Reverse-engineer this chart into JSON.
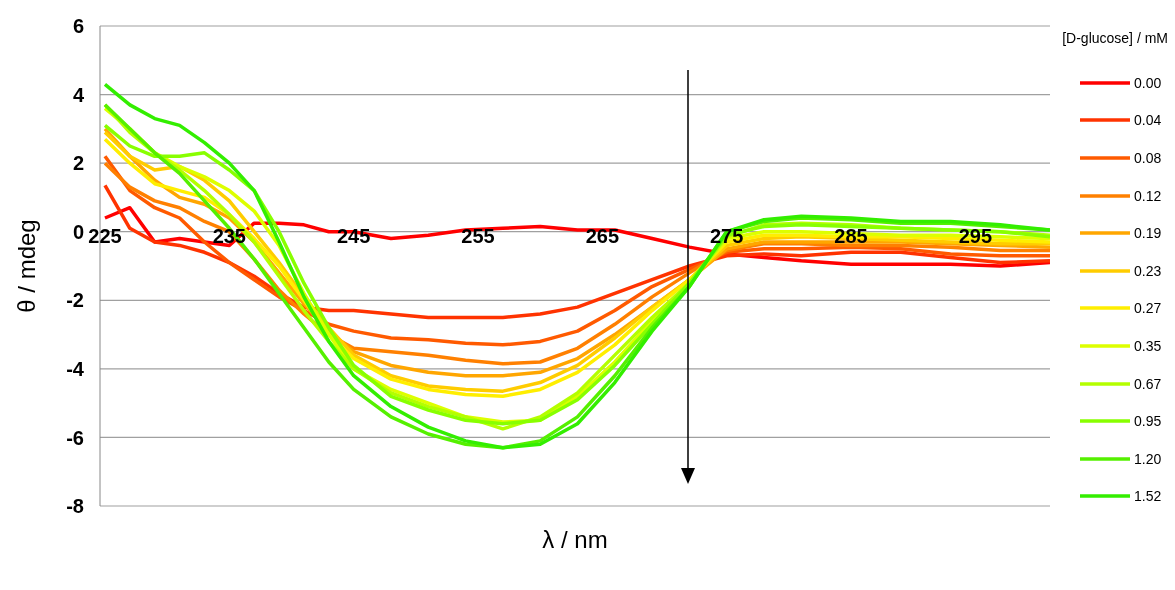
{
  "chart_data": {
    "type": "line",
    "xlabel": "λ / nm",
    "ylabel": "θ / mdeg",
    "legend_title": "[D-glucose] / mM",
    "legend": "right",
    "grid": "y",
    "marker": "none",
    "line_style": "solid",
    "xlim": [
      224.6,
      301
    ],
    "xticks": [
      225,
      235,
      245,
      255,
      265,
      275,
      285,
      295
    ],
    "ylim": [
      -8,
      6
    ],
    "yticks": [
      -8,
      -6,
      -4,
      -2,
      0,
      2,
      4,
      6
    ],
    "x": [
      225,
      227,
      229,
      231,
      233,
      235,
      237,
      239,
      241,
      243,
      245,
      248,
      251,
      254,
      257,
      260,
      263,
      266,
      269,
      272,
      275,
      278,
      281,
      285,
      289,
      293,
      297,
      301
    ],
    "series": [
      {
        "name": "0.00",
        "color": "#ff0000",
        "values": [
          0.4,
          0.7,
          -0.3,
          -0.2,
          -0.3,
          -0.4,
          0.25,
          0.25,
          0.2,
          0.0,
          0.0,
          -0.2,
          -0.1,
          0.05,
          0.1,
          0.15,
          0.05,
          0.05,
          -0.2,
          -0.45,
          -0.65,
          -0.75,
          -0.85,
          -0.95,
          -0.95,
          -0.95,
          -1.0,
          -0.9
        ]
      },
      {
        "name": "0.04",
        "color": "#ff3300",
        "values": [
          1.35,
          0.1,
          -0.3,
          -0.4,
          -0.6,
          -0.9,
          -1.3,
          -1.8,
          -2.2,
          -2.3,
          -2.3,
          -2.4,
          -2.5,
          -2.5,
          -2.5,
          -2.4,
          -2.2,
          -1.8,
          -1.4,
          -1.0,
          -0.7,
          -0.65,
          -0.7,
          -0.6,
          -0.6,
          -0.75,
          -0.9,
          -0.85
        ]
      },
      {
        "name": "0.08",
        "color": "#ff5a00",
        "values": [
          2.2,
          1.2,
          0.7,
          0.4,
          -0.3,
          -0.9,
          -1.4,
          -1.9,
          -2.3,
          -2.7,
          -2.9,
          -3.1,
          -3.15,
          -3.25,
          -3.3,
          -3.2,
          -2.9,
          -2.3,
          -1.6,
          -1.1,
          -0.6,
          -0.5,
          -0.5,
          -0.45,
          -0.5,
          -0.65,
          -0.7,
          -0.7
        ]
      },
      {
        "name": "0.12",
        "color": "#ff8000",
        "values": [
          2.0,
          1.3,
          0.9,
          0.7,
          0.3,
          0.0,
          -0.8,
          -1.7,
          -2.4,
          -3.0,
          -3.4,
          -3.5,
          -3.6,
          -3.75,
          -3.85,
          -3.8,
          -3.4,
          -2.7,
          -1.9,
          -1.2,
          -0.55,
          -0.35,
          -0.35,
          -0.4,
          -0.4,
          -0.45,
          -0.55,
          -0.55
        ]
      },
      {
        "name": "0.19",
        "color": "#ffa600",
        "values": [
          3.0,
          2.2,
          1.5,
          1.0,
          0.8,
          0.4,
          -0.3,
          -1.2,
          -2.1,
          -2.9,
          -3.5,
          -3.9,
          -4.1,
          -4.2,
          -4.2,
          -4.1,
          -3.7,
          -3.0,
          -2.2,
          -1.4,
          -0.5,
          -0.3,
          -0.3,
          -0.3,
          -0.3,
          -0.35,
          -0.4,
          -0.45
        ]
      },
      {
        "name": "0.23",
        "color": "#ffcc00",
        "values": [
          2.9,
          2.2,
          1.8,
          1.9,
          1.5,
          0.9,
          0.0,
          -0.9,
          -1.9,
          -2.8,
          -3.6,
          -4.2,
          -4.5,
          -4.6,
          -4.65,
          -4.4,
          -3.9,
          -3.1,
          -2.2,
          -1.4,
          -0.4,
          -0.2,
          -0.15,
          -0.2,
          -0.25,
          -0.3,
          -0.35,
          -0.35
        ]
      },
      {
        "name": "0.27",
        "color": "#ffee00",
        "values": [
          2.7,
          2.0,
          1.4,
          1.2,
          1.0,
          0.5,
          -0.2,
          -1.0,
          -2.0,
          -3.0,
          -3.7,
          -4.3,
          -4.6,
          -4.75,
          -4.8,
          -4.6,
          -4.1,
          -3.3,
          -2.3,
          -1.4,
          -0.3,
          -0.1,
          -0.1,
          -0.15,
          -0.15,
          -0.2,
          -0.25,
          -0.3
        ]
      },
      {
        "name": "0.35",
        "color": "#ddff00",
        "values": [
          3.6,
          3.0,
          2.3,
          1.9,
          1.6,
          1.2,
          0.6,
          -0.4,
          -1.8,
          -3.0,
          -4.0,
          -4.6,
          -5.0,
          -5.4,
          -5.55,
          -5.5,
          -4.8,
          -3.8,
          -2.6,
          -1.5,
          -0.2,
          0.0,
          0.0,
          -0.05,
          -0.1,
          -0.1,
          -0.15,
          -0.2
        ]
      },
      {
        "name": "0.67",
        "color": "#b4ff00",
        "values": [
          3.7,
          2.9,
          2.3,
          1.8,
          1.2,
          0.5,
          -0.3,
          -1.3,
          -2.3,
          -3.2,
          -4.0,
          -4.7,
          -5.1,
          -5.4,
          -5.75,
          -5.4,
          -4.7,
          -3.6,
          -2.5,
          -1.5,
          -0.15,
          0.2,
          0.25,
          0.2,
          0.1,
          0.05,
          0.0,
          -0.1
        ]
      },
      {
        "name": "0.95",
        "color": "#88ff00",
        "values": [
          3.1,
          2.5,
          2.2,
          2.2,
          2.3,
          1.8,
          1.2,
          0.0,
          -1.5,
          -2.8,
          -3.9,
          -4.8,
          -5.2,
          -5.5,
          -5.6,
          -5.5,
          -4.9,
          -3.9,
          -2.7,
          -1.5,
          -0.1,
          0.15,
          0.2,
          0.15,
          0.1,
          0.05,
          0.0,
          -0.15
        ]
      },
      {
        "name": "1.20",
        "color": "#55f000",
        "values": [
          3.7,
          3.0,
          2.3,
          1.7,
          0.9,
          0.1,
          -0.8,
          -1.8,
          -2.8,
          -3.8,
          -4.6,
          -5.4,
          -5.9,
          -6.2,
          -6.3,
          -6.1,
          -5.4,
          -4.2,
          -2.8,
          -1.6,
          0.0,
          0.3,
          0.4,
          0.35,
          0.25,
          0.25,
          0.15,
          0.05
        ]
      },
      {
        "name": "1.52",
        "color": "#33ee00",
        "values": [
          4.3,
          3.7,
          3.3,
          3.1,
          2.6,
          2.0,
          1.2,
          -0.3,
          -1.9,
          -3.2,
          -4.2,
          -5.1,
          -5.7,
          -6.1,
          -6.3,
          -6.2,
          -5.6,
          -4.4,
          -2.9,
          -1.6,
          0.0,
          0.35,
          0.45,
          0.4,
          0.3,
          0.3,
          0.2,
          0.05
        ]
      }
    ]
  }
}
